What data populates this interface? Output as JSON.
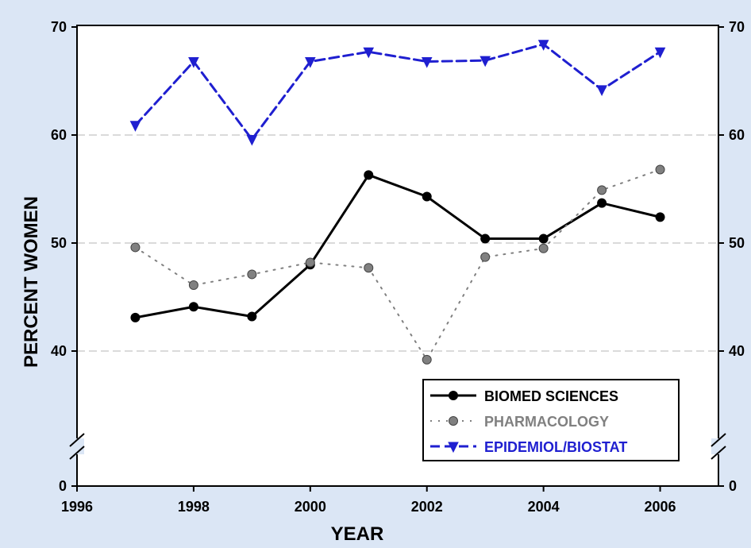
{
  "chart_data": {
    "type": "line",
    "xlabel": "YEAR",
    "ylabel": "PERCENT WOMEN",
    "x_ticks": [
      "1996",
      "1998",
      "2000",
      "2002",
      "2004",
      "2006"
    ],
    "y_ticks_left": [
      "0",
      "40",
      "50",
      "60",
      "70"
    ],
    "y_ticks_right": [
      "0",
      "40",
      "50",
      "60",
      "70"
    ],
    "xlim": [
      1996,
      2007
    ],
    "axis_break": "between 0 and 40 (broken y-axis)",
    "grid": "horizontal dashed at 40, 50, 60",
    "legend_position": "bottom-right",
    "series": [
      {
        "name": "BIOMED SCIENCES",
        "color": "#000000",
        "style": "solid, circle markers",
        "x": [
          1997,
          1998,
          1999,
          2000,
          2001,
          2002,
          2003,
          2004,
          2005,
          2006
        ],
        "values": [
          43.1,
          44.1,
          43.2,
          48.0,
          56.3,
          54.3,
          50.4,
          50.4,
          53.7,
          52.4
        ]
      },
      {
        "name": "PHARMACOLOGY",
        "color": "#808080",
        "style": "dotted, circle markers",
        "x": [
          1997,
          1998,
          1999,
          2000,
          2001,
          2002,
          2003,
          2004,
          2005,
          2006
        ],
        "values": [
          49.6,
          46.1,
          47.1,
          48.2,
          47.7,
          39.2,
          48.7,
          49.5,
          54.9,
          56.8
        ]
      },
      {
        "name": "EPIDEMIOL/BIOSTAT",
        "color": "#1f1fd0",
        "style": "dashed, down-triangle markers",
        "x": [
          1997,
          1998,
          1999,
          2000,
          2001,
          2002,
          2003,
          2004,
          2005,
          2006
        ],
        "values": [
          60.9,
          66.8,
          59.6,
          66.8,
          67.7,
          66.8,
          66.9,
          68.4,
          64.2,
          67.7
        ]
      }
    ]
  }
}
